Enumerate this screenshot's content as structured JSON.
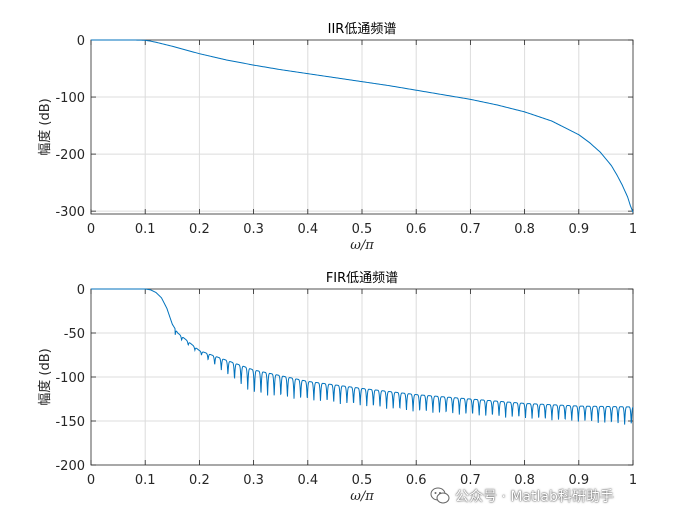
{
  "watermark": {
    "text": "公众号 · Matlab科研助手",
    "icon": "wechat-icon"
  },
  "colors": {
    "line": "#0072BD",
    "grid": "#dcdcdc",
    "axis": "#262626"
  },
  "chart_data": [
    {
      "type": "line",
      "title": "IIR低通频谱",
      "xlabel": "ω/π",
      "ylabel": "幅度 (dB)",
      "xlim": [
        0,
        1
      ],
      "ylim": [
        -305,
        0
      ],
      "xticks": [
        0,
        0.1,
        0.2,
        0.3,
        0.4,
        0.5,
        0.6,
        0.7,
        0.8,
        0.9,
        1
      ],
      "xtick_labels": [
        "0",
        "0.1",
        "0.2",
        "0.3",
        "0.4",
        "0.5",
        "0.6",
        "0.7",
        "0.8",
        "0.9",
        "1"
      ],
      "yticks": [
        0,
        -100,
        -200,
        -300
      ],
      "ytick_labels": [
        "0",
        "-100",
        "-200",
        "-300"
      ],
      "grid": true,
      "series": [
        {
          "x": [
            0,
            0.05,
            0.08,
            0.1,
            0.11,
            0.12,
            0.15,
            0.2,
            0.25,
            0.3,
            0.35,
            0.4,
            0.45,
            0.5,
            0.55,
            0.6,
            0.65,
            0.7,
            0.75,
            0.8,
            0.85,
            0.9,
            0.92,
            0.94,
            0.96,
            0.97,
            0.98,
            0.99,
            0.995,
            1.0
          ],
          "y": [
            0,
            0,
            0,
            -0.5,
            -2,
            -4,
            -11,
            -24,
            -35,
            -44,
            -52,
            -59,
            -66,
            -73,
            -80,
            -88,
            -96,
            -104,
            -114,
            -126,
            -142,
            -166,
            -180,
            -197,
            -220,
            -236,
            -254,
            -275,
            -290,
            -302
          ]
        }
      ]
    },
    {
      "type": "line",
      "title": "FIR低通频谱",
      "xlabel": "ω/π",
      "ylabel": "幅度 (dB)",
      "xlim": [
        0,
        1
      ],
      "ylim": [
        -200,
        0
      ],
      "xticks": [
        0,
        0.1,
        0.2,
        0.3,
        0.4,
        0.5,
        0.6,
        0.7,
        0.8,
        0.9,
        1
      ],
      "xtick_labels": [
        "0",
        "0.1",
        "0.2",
        "0.3",
        "0.4",
        "0.5",
        "0.6",
        "0.7",
        "0.8",
        "0.9",
        "1"
      ],
      "yticks": [
        0,
        -50,
        -100,
        -150,
        -200
      ],
      "ytick_labels": [
        "0",
        "-50",
        "-100",
        "-150",
        "-200"
      ],
      "grid": true,
      "series": [
        {
          "x": [
            0,
            0.1,
            0.11,
            0.12,
            0.13,
            0.14,
            0.15,
            0.16,
            0.2,
            0.3,
            0.4,
            0.5,
            0.6,
            0.7,
            0.8,
            0.9,
            1.0
          ],
          "y": [
            0,
            0,
            -1,
            -4,
            -10,
            -22,
            -40,
            -50,
            -70,
            -92,
            -105,
            -113,
            -120,
            -125,
            -130,
            -133,
            -134
          ],
          "sidelobe_start": 0.155,
          "sidelobe_spacing": 0.0122,
          "notch_floor": [
            [
              0.16,
              -55
            ],
            [
              0.3,
              -120
            ],
            [
              0.6,
              -140
            ],
            [
              1.0,
              -155
            ]
          ]
        }
      ]
    }
  ]
}
